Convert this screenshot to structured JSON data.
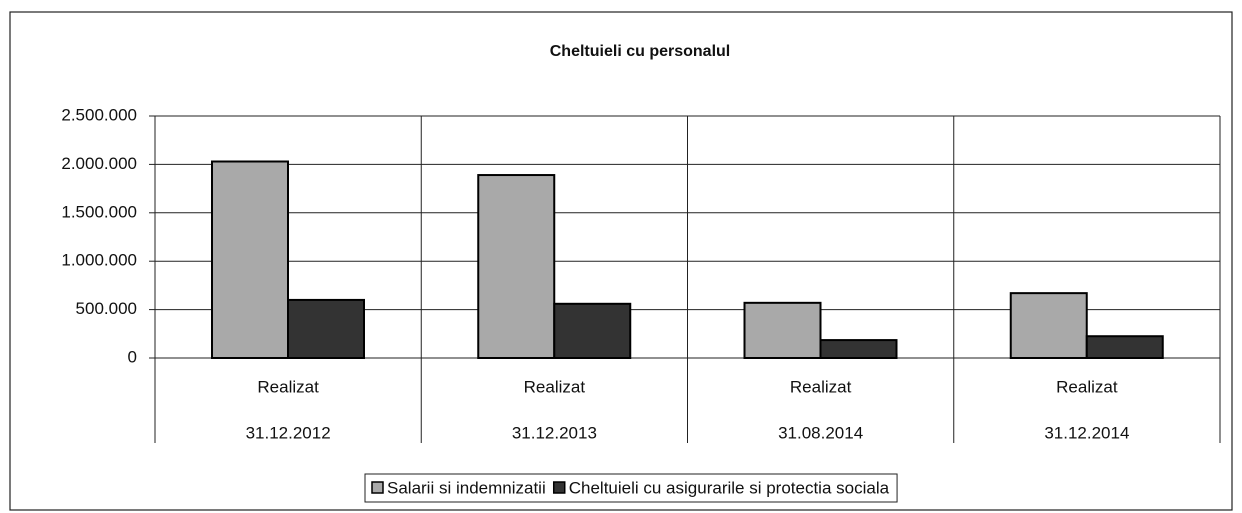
{
  "chart_data": {
    "type": "bar",
    "title": "Cheltuieli cu personalul",
    "categories": [
      [
        "Realizat",
        "31.12.2012"
      ],
      [
        "Realizat",
        "31.12.2013"
      ],
      [
        "Realizat",
        "31.08.2014"
      ],
      [
        "Realizat",
        "31.12.2014"
      ]
    ],
    "series": [
      {
        "name": "Salarii si indemnizatii",
        "color": "#a9a9a9",
        "values": [
          2030000,
          1890000,
          570000,
          670000
        ]
      },
      {
        "name": "Cheltuieli cu asigurarile si protectia sociala",
        "color": "#333333",
        "values": [
          600000,
          560000,
          185000,
          225000
        ]
      }
    ],
    "ylim": [
      0,
      2500000
    ],
    "yticks": [
      0,
      {
        "value": 500000,
        "label": "500.000"
      },
      {
        "value": 1000000,
        "label": "1.000.000"
      },
      {
        "value": 1500000,
        "label": "1.500.000"
      },
      {
        "value": 2000000,
        "label": "2.000.000"
      },
      {
        "value": 2500000,
        "label": "2.500.000"
      }
    ],
    "grid": true,
    "legend": "bottom"
  }
}
